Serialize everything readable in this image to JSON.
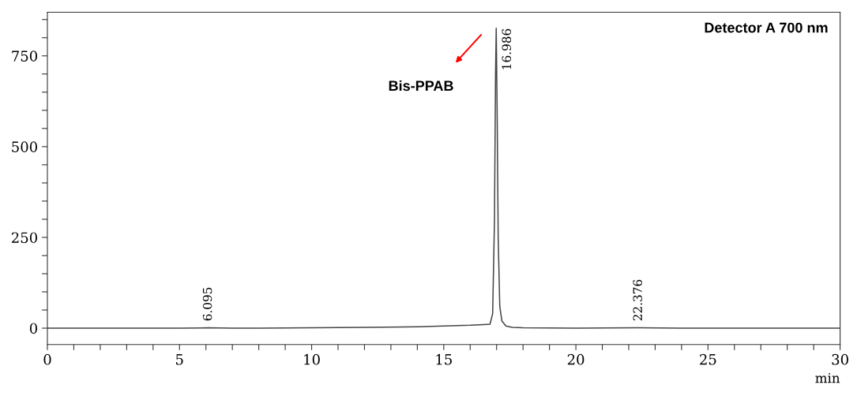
{
  "chart_data": {
    "type": "line",
    "xlabel": "min",
    "xlim": [
      0,
      30
    ],
    "ylim": [
      -45,
      870
    ],
    "xticks": [
      0,
      {
        "value": 1,
        "label": null
      },
      {
        "value": 2,
        "label": null
      },
      {
        "value": 3,
        "label": null
      },
      {
        "value": 4,
        "label": null
      },
      5,
      {
        "value": 6,
        "label": null
      },
      {
        "value": 7,
        "label": null
      },
      {
        "value": 8,
        "label": null
      },
      {
        "value": 9,
        "label": null
      },
      10,
      {
        "value": 11,
        "label": null
      },
      {
        "value": 12,
        "label": null
      },
      {
        "value": 13,
        "label": null
      },
      {
        "value": 14,
        "label": null
      },
      15,
      {
        "value": 16,
        "label": null
      },
      {
        "value": 17,
        "label": null
      },
      {
        "value": 18,
        "label": null
      },
      {
        "value": 19,
        "label": null
      },
      20,
      {
        "value": 21,
        "label": null
      },
      {
        "value": 22,
        "label": null
      },
      {
        "value": 23,
        "label": null
      },
      {
        "value": 24,
        "label": null
      },
      25,
      {
        "value": 26,
        "label": null
      },
      {
        "value": 27,
        "label": null
      },
      {
        "value": 28,
        "label": null
      },
      {
        "value": 29,
        "label": null
      },
      30
    ],
    "yticks": [
      0,
      {
        "value": 50,
        "label": null
      },
      {
        "value": 100,
        "label": null
      },
      {
        "value": 150,
        "label": null
      },
      {
        "value": 200,
        "label": null
      },
      250,
      {
        "value": 300,
        "label": null
      },
      {
        "value": 350,
        "label": null
      },
      {
        "value": 400,
        "label": null
      },
      {
        "value": 450,
        "label": null
      },
      500,
      {
        "value": 550,
        "label": null
      },
      {
        "value": 600,
        "label": null
      },
      {
        "value": 650,
        "label": null
      },
      {
        "value": 700,
        "label": null
      },
      750,
      {
        "value": 800,
        "label": null
      },
      {
        "value": 850,
        "label": null
      }
    ],
    "grid": false,
    "marker": "none",
    "line_style": "solid",
    "series": [
      {
        "color": "#444444",
        "x": [
          0,
          5,
          6.095,
          7,
          8,
          10,
          12,
          14,
          15,
          16,
          16.5,
          16.75,
          16.85,
          16.92,
          16.96,
          16.986,
          17.02,
          17.06,
          17.12,
          17.2,
          17.35,
          17.6,
          18,
          20,
          22.376,
          24,
          27,
          30
        ],
        "values": [
          0,
          0,
          1,
          0,
          0,
          1,
          2,
          4,
          6,
          8,
          10,
          11,
          40,
          300,
          700,
          826,
          600,
          250,
          60,
          20,
          6,
          2,
          1,
          0,
          1,
          0,
          0,
          0
        ]
      }
    ],
    "annotations": [
      "Detector A 700 nm",
      "Bis-PPAB",
      {
        "text": "6.095",
        "x": 6.095,
        "y": 1
      },
      {
        "text": "16.986",
        "x": 16.986,
        "y": 826
      },
      {
        "text": "22.376",
        "x": 22.376,
        "y": 1
      }
    ]
  }
}
